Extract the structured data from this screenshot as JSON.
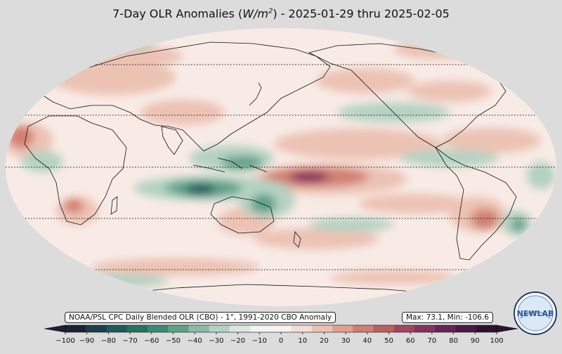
{
  "title": {
    "prefix": "7-Day OLR Anomalies (",
    "unit_base": "W/m",
    "unit_exp": "2",
    "suffix": ") - 2025-01-29 thru 2025-02-05"
  },
  "source_label": "NOAA/PSL CPC Daily Blended OLR (CBO) - 1°, 1991-2020 CBO Anomaly",
  "stats_label": "Max: 73.1,  Min: -106.6",
  "colorbar": {
    "min": -100,
    "max": 100,
    "ticks": [
      "−100",
      "−90",
      "−80",
      "−70",
      "−60",
      "−50",
      "−40",
      "−30",
      "−20",
      "−10",
      "0",
      "10",
      "20",
      "30",
      "40",
      "50",
      "60",
      "70",
      "80",
      "90",
      "100"
    ],
    "colors": [
      "#1a2233",
      "#1f3d4d",
      "#1d5a5a",
      "#257463",
      "#3a8b73",
      "#5ea189",
      "#8bbba5",
      "#b4d2c2",
      "#d9e8df",
      "#f3f5f2",
      "#fbf2ef",
      "#f5ddd4",
      "#ecc2b3",
      "#e0a28f",
      "#d17f71",
      "#bd5f62",
      "#a34660",
      "#86325f",
      "#672457",
      "#4a1a45",
      "#2d1230"
    ]
  },
  "logo": {
    "text": "NEWLAB",
    "icon": "psl-logo-icon"
  },
  "map": {
    "projection": "Robinson",
    "latitude_lines": [
      "60N",
      "30N",
      "0",
      "30S",
      "60S"
    ],
    "colors": {
      "ocean_base": "#f8ebe6",
      "neutral": "#faf6f3",
      "pos_light": "#ecc2b3",
      "pos_mid": "#d17f71",
      "pos_dark": "#86325f",
      "neg_light": "#b4d2c2",
      "neg_mid": "#5ea189",
      "neg_dark": "#1d5a5a",
      "coast": "#111111"
    }
  }
}
